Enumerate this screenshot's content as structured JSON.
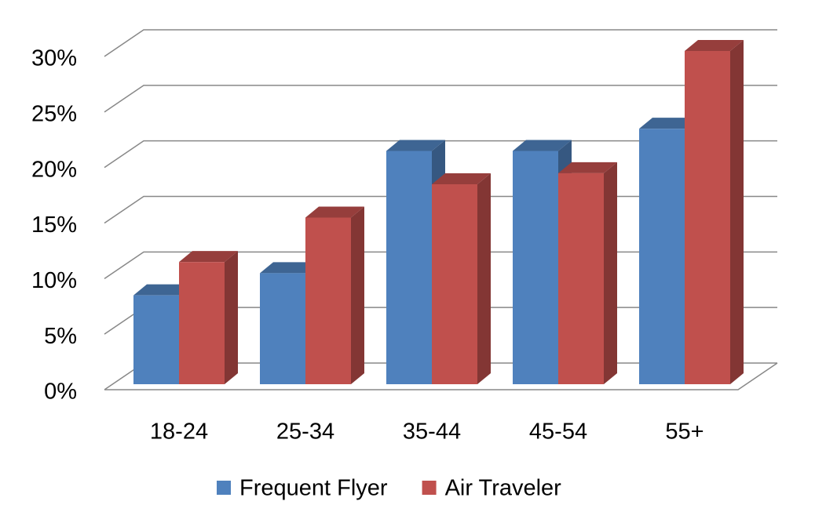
{
  "chart_data": {
    "type": "bar3d",
    "categories": [
      "18-24",
      "25-34",
      "35-44",
      "45-54",
      "55+"
    ],
    "series": [
      {
        "name": "Frequent Flyer",
        "color": "#4F81BD",
        "values": [
          8,
          10,
          21,
          21,
          23
        ]
      },
      {
        "name": "Air Traveler",
        "color": "#C0504D",
        "values": [
          11,
          15,
          18,
          19,
          30
        ]
      }
    ],
    "ylim": [
      0,
      30
    ],
    "yticks": [
      {
        "value": 0,
        "label": "0%"
      },
      {
        "value": 5,
        "label": "5%"
      },
      {
        "value": 10,
        "label": "10%"
      },
      {
        "value": 15,
        "label": "15%"
      },
      {
        "value": 20,
        "label": "20%"
      },
      {
        "value": 25,
        "label": "25%"
      },
      {
        "value": 30,
        "label": "30%"
      }
    ],
    "grid": true,
    "legend": "bottom"
  }
}
